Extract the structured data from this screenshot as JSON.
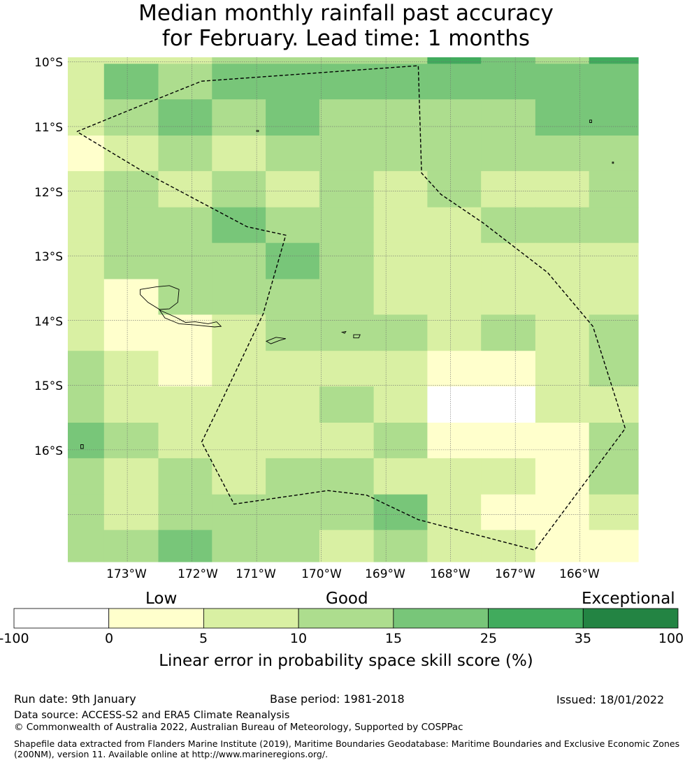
{
  "title": {
    "line1": "Median monthly rainfall past accuracy",
    "line2": "for February. Lead time: 1 months"
  },
  "map": {
    "lat_labels": [
      "10°S",
      "11°S",
      "12°S",
      "13°S",
      "14°S",
      "15°S",
      "16°S"
    ],
    "lon_labels": [
      "173°W",
      "172°W",
      "171°W",
      "170°W",
      "169°W",
      "168°W",
      "167°W",
      "166°W"
    ],
    "lon_extent": [
      -173.92,
      -165.1
    ],
    "lat_extent": [
      -9.93,
      -17.73
    ],
    "grid_bounds_lon": [
      -173.92,
      -173.36,
      -172.52,
      -171.69,
      -170.86,
      -170.03,
      -169.19,
      -168.36,
      -167.53,
      -166.69,
      -165.86,
      -165.1
    ],
    "grid_bounds_lat": [
      -9.93,
      -10.03,
      -10.58,
      -11.14,
      -11.69,
      -12.25,
      -12.8,
      -13.36,
      -13.91,
      -14.47,
      -15.02,
      -15.58,
      -16.13,
      -16.69,
      -17.24,
      -17.73
    ],
    "cell_categories": [
      [
        2,
        2,
        2,
        3,
        3,
        3,
        3,
        5,
        4,
        3,
        5
      ],
      [
        2,
        4,
        3,
        4,
        4,
        4,
        4,
        4,
        4,
        4,
        4
      ],
      [
        2,
        3,
        4,
        3,
        4,
        3,
        3,
        3,
        3,
        4,
        4
      ],
      [
        1,
        2,
        3,
        2,
        3,
        3,
        3,
        3,
        3,
        3,
        3
      ],
      [
        2,
        3,
        2,
        3,
        2,
        3,
        2,
        3,
        2,
        2,
        3
      ],
      [
        2,
        3,
        3,
        4,
        3,
        3,
        2,
        2,
        3,
        3,
        3
      ],
      [
        2,
        3,
        3,
        3,
        4,
        3,
        2,
        2,
        2,
        2,
        2
      ],
      [
        2,
        1,
        3,
        3,
        3,
        3,
        2,
        2,
        2,
        2,
        2
      ],
      [
        2,
        1,
        1,
        2,
        3,
        3,
        3,
        2,
        3,
        2,
        3
      ],
      [
        3,
        2,
        1,
        2,
        2,
        2,
        2,
        1,
        1,
        2,
        3
      ],
      [
        3,
        2,
        2,
        2,
        2,
        3,
        2,
        0,
        0,
        2,
        2
      ],
      [
        4,
        3,
        2,
        2,
        2,
        2,
        3,
        1,
        1,
        1,
        3
      ],
      [
        3,
        2,
        3,
        2,
        3,
        3,
        2,
        2,
        2,
        1,
        3
      ],
      [
        3,
        2,
        3,
        3,
        3,
        3,
        4,
        2,
        1,
        1,
        2
      ],
      [
        3,
        3,
        4,
        3,
        3,
        2,
        3,
        2,
        2,
        1,
        1
      ]
    ],
    "eez_boundary": [
      [
        -173.78,
        -11.08
      ],
      [
        -172.9,
        -10.72
      ],
      [
        -171.85,
        -10.3
      ],
      [
        -168.5,
        -10.06
      ],
      [
        -168.45,
        -11.72
      ],
      [
        -168.15,
        -12.05
      ],
      [
        -167.5,
        -12.49
      ],
      [
        -166.5,
        -13.26
      ],
      [
        -165.8,
        -14.09
      ],
      [
        -165.3,
        -15.67
      ],
      [
        -166.7,
        -17.55
      ],
      [
        -168.5,
        -17.08
      ],
      [
        -169.3,
        -16.7
      ],
      [
        -169.9,
        -16.63
      ],
      [
        -171.35,
        -16.84
      ],
      [
        -171.85,
        -15.88
      ],
      [
        -171.6,
        -15.37
      ],
      [
        -170.9,
        -13.9
      ],
      [
        -170.55,
        -12.68
      ],
      [
        -171.15,
        -12.55
      ],
      [
        -172.75,
        -11.7
      ],
      [
        -173.78,
        -11.08
      ]
    ],
    "islands": {
      "upolu": [
        [
          -172.5,
          -13.84
        ],
        [
          -172.25,
          -13.95
        ],
        [
          -172.1,
          -14.03
        ],
        [
          -171.95,
          -14.02
        ],
        [
          -171.75,
          -14.05
        ],
        [
          -171.62,
          -14.02
        ],
        [
          -171.55,
          -14.09
        ],
        [
          -171.65,
          -14.1
        ],
        [
          -171.95,
          -14.07
        ],
        [
          -172.2,
          -14.05
        ],
        [
          -172.42,
          -13.96
        ]
      ],
      "savaii": [
        [
          -172.8,
          -13.52
        ],
        [
          -172.55,
          -13.48
        ],
        [
          -172.35,
          -13.46
        ],
        [
          -172.2,
          -13.52
        ],
        [
          -172.22,
          -13.72
        ],
        [
          -172.35,
          -13.82
        ],
        [
          -172.5,
          -13.83
        ],
        [
          -172.68,
          -13.72
        ],
        [
          -172.8,
          -13.6
        ]
      ],
      "tutuila": [
        [
          -170.85,
          -14.32
        ],
        [
          -170.7,
          -14.26
        ],
        [
          -170.55,
          -14.28
        ],
        [
          -170.65,
          -14.31
        ],
        [
          -170.78,
          -14.36
        ]
      ],
      "ofu": [
        [
          -169.68,
          -14.18
        ],
        [
          -169.62,
          -14.17
        ],
        [
          -169.64,
          -14.2
        ]
      ],
      "tau": [
        [
          -169.5,
          -14.22
        ],
        [
          -169.4,
          -14.22
        ],
        [
          -169.42,
          -14.27
        ],
        [
          -169.5,
          -14.27
        ]
      ],
      "small1": [
        [
          -171.0,
          -11.06
        ],
        [
          -170.97,
          -11.06
        ],
        [
          -170.97,
          -11.08
        ],
        [
          -171.0,
          -11.08
        ]
      ],
      "small2": [
        [
          -165.85,
          -10.9
        ],
        [
          -165.82,
          -10.9
        ],
        [
          -165.82,
          -10.94
        ],
        [
          -165.85,
          -10.94
        ]
      ],
      "small3": [
        [
          -165.5,
          -11.55
        ],
        [
          -165.48,
          -11.55
        ],
        [
          -165.48,
          -11.57
        ],
        [
          -165.5,
          -11.57
        ]
      ],
      "small4": [
        [
          -173.72,
          -15.92
        ],
        [
          -173.68,
          -15.92
        ],
        [
          -173.68,
          -15.98
        ],
        [
          -173.72,
          -15.98
        ]
      ]
    }
  },
  "legend": {
    "categories": [
      "Low",
      "Good",
      "Exceptional"
    ],
    "ticks": [
      "-100",
      "0",
      "5",
      "10",
      "15",
      "25",
      "35",
      "100"
    ],
    "colors": [
      "#ffffff",
      "#ffffcc",
      "#d9f0a3",
      "#addd8e",
      "#78c679",
      "#41ab5d",
      "#238443"
    ],
    "label": "Linear error in probability space skill score (%)"
  },
  "footer": {
    "run_date": "Run date: 9th January",
    "base_period": "Base period: 1981-2018",
    "issued": "Issued: 18/01/2022",
    "data_source": "Data source: ACCESS-S2 and ERA5 Climate Reanalysis",
    "copyright": "© Commonwealth of Australia 2022, Australian Bureau of Meteorology, Supported by COSPPac",
    "shapefile_line1": "Shapefile data extracted from Flanders Marine Institute (2019), Maritime Boundaries Geodatabase: Maritime Boundaries and Exclusive Economic Zones",
    "shapefile_line2": "(200NM), version 11. Available online at http://www.marineregions.org/."
  }
}
